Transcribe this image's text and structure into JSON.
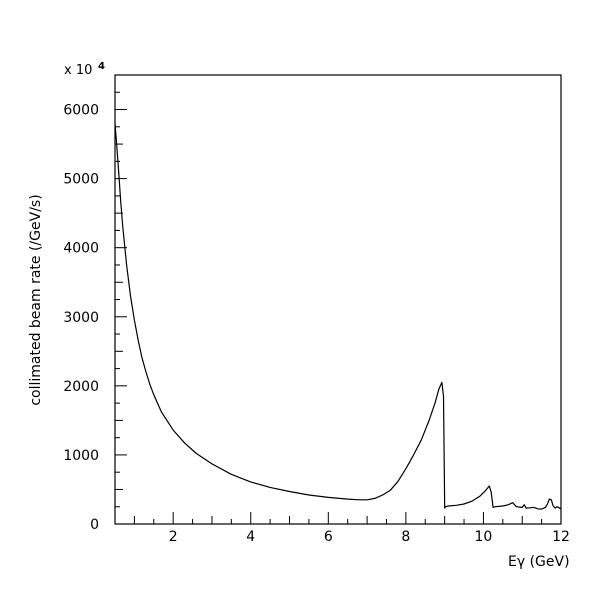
{
  "chart_data": {
    "type": "line",
    "title": "",
    "xlabel": "Eγ (GeV)",
    "ylabel": "collimated beam rate (/GeV/s)",
    "y_multiplier": "x 10",
    "y_multiplier_exp": "4",
    "xlim": [
      0.5,
      12
    ],
    "ylim": [
      0,
      6500
    ],
    "x_ticks": [
      2,
      4,
      6,
      8,
      10,
      12
    ],
    "x_tick_labels": [
      "2",
      "4",
      "6",
      "8",
      "10",
      "12"
    ],
    "y_ticks": [
      0,
      1000,
      2000,
      3000,
      4000,
      5000,
      6000
    ],
    "y_tick_labels": [
      "0",
      "1000",
      "2000",
      "3000",
      "4000",
      "5000",
      "6000"
    ],
    "grid": false,
    "series": [
      {
        "x": [
          0.5,
          0.55,
          0.6,
          0.65,
          0.7,
          0.8,
          0.9,
          1.0,
          1.1,
          1.2,
          1.3,
          1.4,
          1.5,
          1.7,
          2.0,
          2.3,
          2.6,
          3.0,
          3.5,
          4.0,
          4.5,
          5.0,
          5.5,
          6.0,
          6.5,
          6.8,
          7.0,
          7.2,
          7.4,
          7.6,
          7.8,
          8.0,
          8.2,
          8.4,
          8.6,
          8.75,
          8.85,
          8.93,
          8.97,
          9.0,
          9.02,
          9.1,
          9.3,
          9.5,
          9.7,
          9.9,
          10.05,
          10.15,
          10.2,
          10.25,
          10.3,
          10.5,
          10.65,
          10.75,
          10.8,
          10.85,
          11.0,
          11.05,
          11.1,
          11.2,
          11.3,
          11.4,
          11.5,
          11.6,
          11.65,
          11.7,
          11.75,
          11.8,
          11.85,
          11.9,
          12.0
        ],
        "values": [
          5800,
          5450,
          5050,
          4650,
          4300,
          3750,
          3300,
          2950,
          2650,
          2400,
          2200,
          2020,
          1870,
          1620,
          1360,
          1170,
          1020,
          870,
          720,
          610,
          530,
          470,
          420,
          385,
          360,
          350,
          350,
          370,
          420,
          490,
          620,
          800,
          1000,
          1220,
          1500,
          1750,
          1950,
          2050,
          1850,
          230,
          250,
          260,
          270,
          290,
          330,
          400,
          480,
          550,
          460,
          240,
          250,
          260,
          280,
          310,
          280,
          250,
          240,
          280,
          230,
          235,
          240,
          220,
          215,
          240,
          290,
          360,
          350,
          260,
          230,
          250,
          220
        ]
      }
    ]
  }
}
